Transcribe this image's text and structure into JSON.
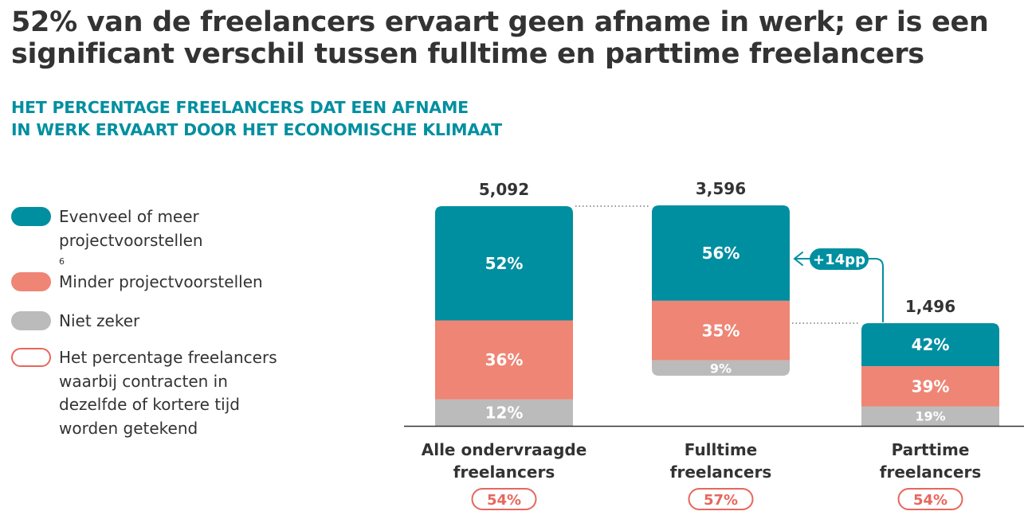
{
  "title": {
    "line1": "52% van de freelancers ervaart geen afname in werk; er is een",
    "line2": "significant verschil tussen fulltime en parttime freelancers"
  },
  "subtitle": {
    "line1": "HET PERCENTAGE FREELANCERS DAT EEN AFNAME",
    "line2": "IN WERK ERVAART DOOR HET ECONOMISCHE KLIMAAT"
  },
  "legend": {
    "items": [
      {
        "lines": [
          "Evenveel of meer",
          "projectvoorstellen"
        ],
        "footnote": "6",
        "color": "#008fa0",
        "style": "fill"
      },
      {
        "lines": [
          "Minder projectvoorstellen"
        ],
        "color": "#ef8575",
        "style": "fill"
      },
      {
        "lines": [
          "Niet zeker"
        ],
        "color": "#bbbbbb",
        "style": "fill"
      },
      {
        "lines": [
          "Het percentage freelancers",
          "waarbij contracten in",
          "dezelfde of kortere tijd",
          "worden getekend"
        ],
        "color": "#e8665c",
        "style": "outline"
      }
    ]
  },
  "colors": {
    "teal": "#008fa0",
    "salmon": "#ef8575",
    "grey": "#bbbbbb",
    "red_outline": "#e8665c",
    "text": "#333333"
  },
  "chart_data": {
    "type": "bar",
    "stacked": true,
    "categories": [
      {
        "lines": [
          "Alle ondervraagde",
          "freelancers"
        ]
      },
      {
        "lines": [
          "Fulltime",
          "freelancers"
        ]
      },
      {
        "lines": [
          "Parttime",
          "freelancers"
        ]
      }
    ],
    "sample_sizes": [
      "5,092",
      "3,596",
      "1,496"
    ],
    "series": [
      {
        "name": "Evenveel of meer projectvoorstellen",
        "values": [
          52,
          56,
          42
        ],
        "labels": [
          "52%",
          "56%",
          "42%"
        ],
        "color": "#008fa0"
      },
      {
        "name": "Minder projectvoorstellen",
        "values": [
          36,
          35,
          39
        ],
        "labels": [
          "36%",
          "35%",
          "39%"
        ],
        "color": "#ef8575"
      },
      {
        "name": "Niet zeker",
        "values": [
          12,
          9,
          19
        ],
        "labels": [
          "12%",
          "9%",
          "19%"
        ],
        "color": "#bbbbbb"
      }
    ],
    "contracts_same_or_shorter": [
      "54%",
      "57%",
      "54%"
    ],
    "annotation": {
      "label": "+14pp",
      "from_category": 2,
      "to_category": 1
    }
  }
}
